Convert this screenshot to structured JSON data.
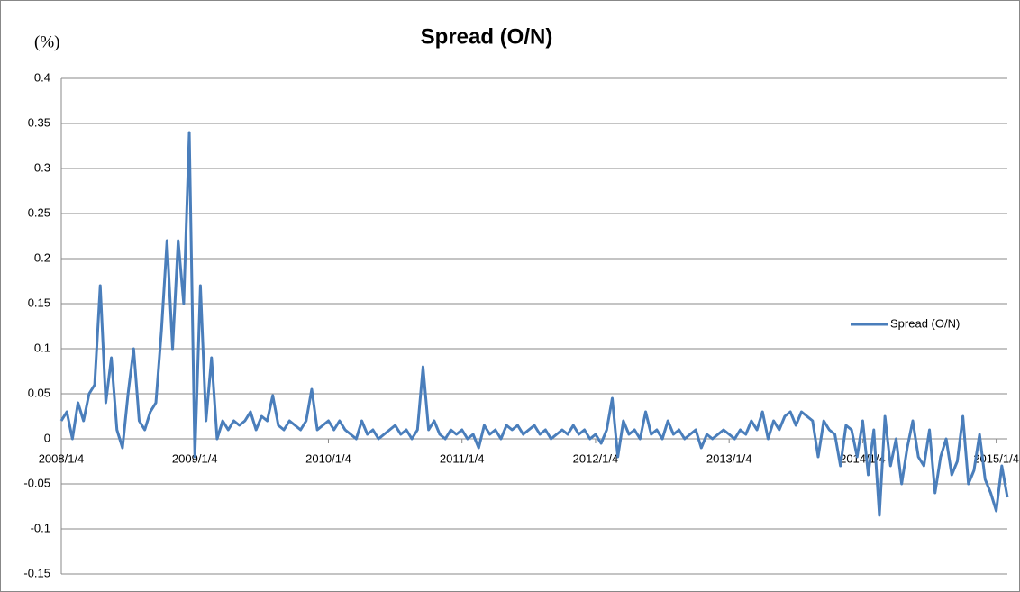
{
  "chart_data": {
    "type": "line",
    "title": "Spread (O/N)",
    "y_label": "(%)",
    "categories": [
      "2008/1/4",
      null,
      null,
      null,
      null,
      null,
      null,
      null,
      null,
      null,
      null,
      null,
      null,
      null,
      null,
      null,
      null,
      null,
      null,
      null,
      null,
      null,
      null,
      null,
      "2009/1/4",
      null,
      null,
      null,
      null,
      null,
      null,
      null,
      null,
      null,
      null,
      null,
      null,
      null,
      null,
      null,
      null,
      null,
      null,
      null,
      null,
      null,
      null,
      null,
      "2010/1/4",
      null,
      null,
      null,
      null,
      null,
      null,
      null,
      null,
      null,
      null,
      null,
      null,
      null,
      null,
      null,
      null,
      null,
      null,
      null,
      null,
      null,
      null,
      null,
      "2011/1/4",
      null,
      null,
      null,
      null,
      null,
      null,
      null,
      null,
      null,
      null,
      null,
      null,
      null,
      null,
      null,
      null,
      null,
      null,
      null,
      null,
      null,
      null,
      null,
      "2012/1/4",
      null,
      null,
      null,
      null,
      null,
      null,
      null,
      null,
      null,
      null,
      null,
      null,
      null,
      null,
      null,
      null,
      null,
      null,
      null,
      null,
      null,
      null,
      null,
      "2013/1/4",
      null,
      null,
      null,
      null,
      null,
      null,
      null,
      null,
      null,
      null,
      null,
      null,
      null,
      null,
      null,
      null,
      null,
      null,
      null,
      null,
      null,
      null,
      null,
      "2014/1/4",
      null,
      null,
      null,
      null,
      null,
      null,
      null,
      null,
      null,
      null,
      null,
      null,
      null,
      null,
      null,
      null,
      null,
      null,
      null,
      null,
      null,
      null,
      null,
      "2015/1/4",
      null,
      null
    ],
    "series": [
      {
        "name": "Spread (O/N)",
        "color": "#4a7ebb",
        "values": [
          0.02,
          0.03,
          0.0,
          0.04,
          0.02,
          0.05,
          0.06,
          0.17,
          0.04,
          0.09,
          0.01,
          -0.01,
          0.05,
          0.1,
          0.02,
          0.01,
          0.03,
          0.04,
          0.12,
          0.22,
          0.1,
          0.22,
          0.15,
          0.34,
          -0.02,
          0.17,
          0.02,
          0.09,
          0.0,
          0.02,
          0.01,
          0.02,
          0.015,
          0.02,
          0.03,
          0.01,
          0.025,
          0.02,
          0.048,
          0.015,
          0.01,
          0.02,
          0.015,
          0.01,
          0.02,
          0.055,
          0.01,
          0.015,
          0.02,
          0.01,
          0.02,
          0.01,
          0.005,
          0.0,
          0.02,
          0.005,
          0.01,
          0.0,
          0.005,
          0.01,
          0.015,
          0.005,
          0.01,
          0.0,
          0.01,
          0.08,
          0.01,
          0.02,
          0.005,
          0.0,
          0.01,
          0.005,
          0.01,
          0.0,
          0.005,
          -0.01,
          0.015,
          0.005,
          0.01,
          0.0,
          0.015,
          0.01,
          0.015,
          0.005,
          0.01,
          0.015,
          0.005,
          0.01,
          0.0,
          0.005,
          0.01,
          0.005,
          0.015,
          0.005,
          0.01,
          0.0,
          0.005,
          -0.005,
          0.01,
          0.045,
          -0.02,
          0.02,
          0.005,
          0.01,
          0.0,
          0.03,
          0.005,
          0.01,
          0.0,
          0.02,
          0.005,
          0.01,
          0.0,
          0.005,
          0.01,
          -0.01,
          0.005,
          0.0,
          0.005,
          0.01,
          0.005,
          0.0,
          0.01,
          0.005,
          0.02,
          0.01,
          0.03,
          0.0,
          0.02,
          0.01,
          0.025,
          0.03,
          0.015,
          0.03,
          0.025,
          0.02,
          -0.02,
          0.02,
          0.01,
          0.005,
          -0.03,
          0.015,
          0.01,
          -0.02,
          0.02,
          -0.04,
          0.01,
          -0.085,
          0.025,
          -0.03,
          0.0,
          -0.05,
          -0.01,
          0.02,
          -0.02,
          -0.03,
          0.01,
          -0.06,
          -0.02,
          0.0,
          -0.04,
          -0.025,
          0.025,
          -0.05,
          -0.035,
          0.005,
          -0.045,
          -0.06,
          -0.08,
          -0.03,
          -0.065
        ]
      }
    ],
    "ylim": [
      -0.15,
      0.4
    ],
    "yticks": [
      -0.15,
      -0.1,
      -0.05,
      0,
      0.05,
      0.1,
      0.15,
      0.2,
      0.25,
      0.3,
      0.35,
      0.4
    ],
    "grid": true,
    "legend": "right"
  }
}
